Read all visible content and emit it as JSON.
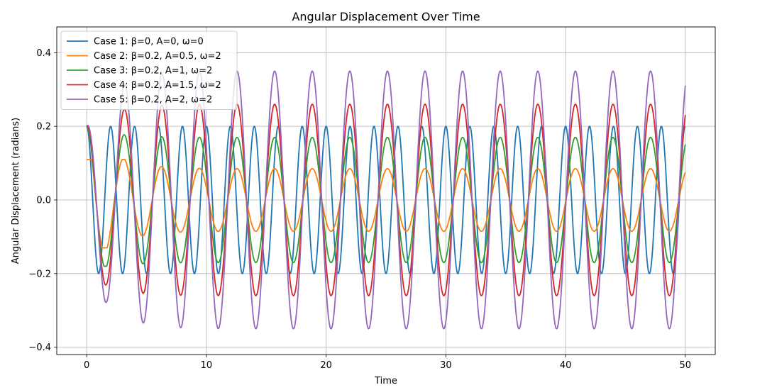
{
  "chart_data": {
    "type": "line",
    "title": "Angular Displacement Over Time",
    "xlabel": "Time",
    "ylabel": "Angular Displacement (radians)",
    "xlim": [
      -2.5,
      52.5
    ],
    "ylim": [
      -0.42,
      0.47
    ],
    "xticks": [
      0,
      10,
      20,
      30,
      40,
      50
    ],
    "yticks": [
      -0.4,
      -0.2,
      0.0,
      0.2,
      0.4
    ],
    "ytick_labels": [
      "−0.4",
      "−0.2",
      "0.0",
      "0.2",
      "0.4"
    ],
    "grid": true,
    "legend_position": "upper-left",
    "x_range": [
      0,
      50
    ],
    "initial_value": 0.2,
    "series": [
      {
        "name": "Case 1: β=0, A=0, ω=0",
        "color": "#1f77b4",
        "peak": 0.2,
        "trough": -0.2,
        "steady_amplitude": 0.2,
        "period": 2.0
      },
      {
        "name": "Case 2: β=0.2, A=0.5, ω=2",
        "color": "#ff7f0e",
        "peak": 0.11,
        "trough": -0.13,
        "steady_amplitude": 0.085,
        "period": 3.14
      },
      {
        "name": "Case 3: β=0.2, A=1, ω=2",
        "color": "#2ca02c",
        "peak": 0.2,
        "trough": -0.18,
        "steady_amplitude": 0.17,
        "period": 3.14
      },
      {
        "name": "Case 4: β=0.2, A=1.5, ω=2",
        "color": "#d62728",
        "peak": 0.3,
        "trough": -0.265,
        "steady_amplitude": 0.26,
        "period": 3.14
      },
      {
        "name": "Case 5: β=0.2, A=2, ω=2",
        "color": "#9467bd",
        "peak": 0.35,
        "trough": -0.39,
        "steady_amplitude": 0.35,
        "period": 3.14
      }
    ]
  }
}
